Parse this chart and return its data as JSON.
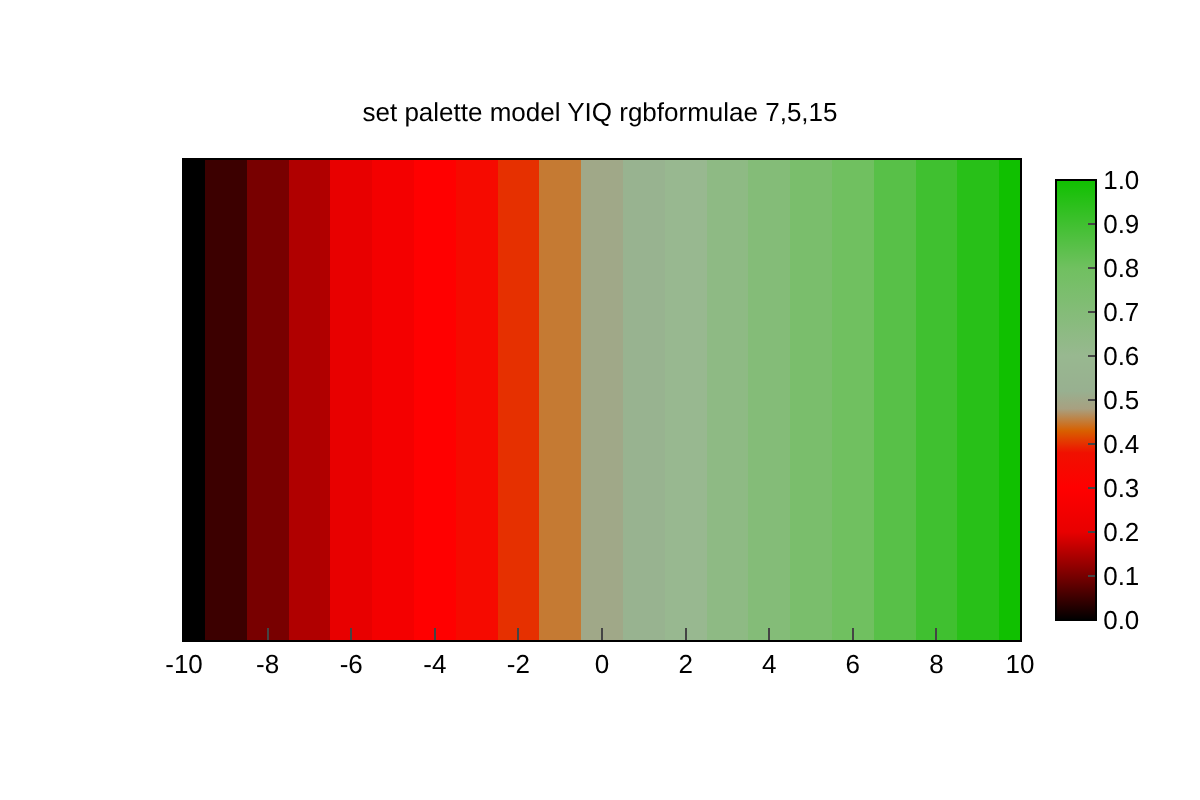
{
  "chart_data": {
    "type": "heatmap",
    "title": "set palette model YIQ rgbformulae 7,5,15",
    "x": [
      -10,
      -9,
      -8,
      -7,
      -6,
      -5,
      -4,
      -3,
      -2,
      -1,
      0,
      1,
      2,
      3,
      4,
      5,
      6,
      7,
      8,
      9,
      10
    ],
    "y_categories": [
      null
    ],
    "cells": [
      [
        0,
        0.05,
        0.1,
        0.15,
        0.2,
        0.25,
        0.3,
        0.35,
        0.4,
        0.45,
        0.5,
        0.55,
        0.6,
        0.65,
        0.7,
        0.75,
        0.8,
        0.85,
        0.9,
        0.95,
        1
      ]
    ],
    "xlim": [
      -10,
      10
    ],
    "xticks": [
      -10,
      -8,
      -6,
      -4,
      -2,
      0,
      2,
      4,
      6,
      8,
      10
    ],
    "clim": [
      0,
      1
    ],
    "cticks": [
      {
        "value": 0,
        "label": "0.0"
      },
      {
        "value": 0.1,
        "label": "0.1"
      },
      {
        "value": 0.2,
        "label": "0.2"
      },
      {
        "value": 0.3,
        "label": "0.3"
      },
      {
        "value": 0.4,
        "label": "0.4"
      },
      {
        "value": 0.5,
        "label": "0.5"
      },
      {
        "value": 0.6,
        "label": "0.6"
      },
      {
        "value": 0.7,
        "label": "0.7"
      },
      {
        "value": 0.8,
        "label": "0.8"
      },
      {
        "value": 0.9,
        "label": "0.9"
      },
      {
        "value": 1,
        "label": "1.0"
      }
    ]
  }
}
